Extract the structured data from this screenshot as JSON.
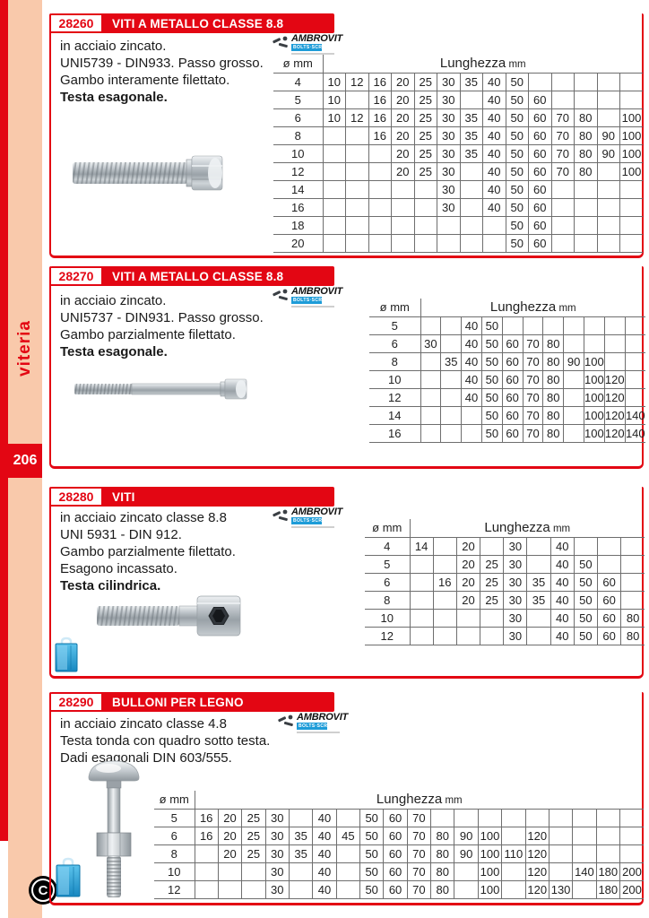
{
  "sidebar": {
    "vertical_label": "viteria",
    "page_number": "206",
    "footer_mark": "C"
  },
  "brand": {
    "name": "AMBROVIT",
    "sub": "BOLTS·SCREWS",
    "accent_blue": "#1e9cd8"
  },
  "colors": {
    "red": "#e30613",
    "pink": "#f9c9ab",
    "grid_line": "#6e6e6e"
  },
  "icons": {
    "screws": "screws-icon",
    "package": "package-bag-icon",
    "footer": "copyright-mark"
  },
  "table_labels": {
    "diameter": "ø mm",
    "length": "Lunghezza",
    "unit": "mm"
  },
  "sections": [
    {
      "code": "28260",
      "title": "VITI A METALLO CLASSE 8.8",
      "description": [
        {
          "text": "in acciaio zincato.",
          "bold": false
        },
        {
          "text": "UNI5739 - DIN933. Passo grosso.",
          "bold": false
        },
        {
          "text": "Gambo interamente filettato.",
          "bold": false
        },
        {
          "text": "Testa esagonale.",
          "bold": true
        }
      ],
      "image": "fully-threaded-hex-bolt",
      "rows": [
        {
          "diameter": "4",
          "lengths": [
            "10",
            "12",
            "16",
            "20",
            "25",
            "30",
            "35",
            "40",
            "50",
            "",
            "",
            "",
            "",
            ""
          ]
        },
        {
          "diameter": "5",
          "lengths": [
            "10",
            "",
            "16",
            "20",
            "25",
            "30",
            "",
            "40",
            "50",
            "60",
            "",
            "",
            "",
            ""
          ]
        },
        {
          "diameter": "6",
          "lengths": [
            "10",
            "12",
            "16",
            "20",
            "25",
            "30",
            "35",
            "40",
            "50",
            "60",
            "70",
            "80",
            "",
            "100"
          ]
        },
        {
          "diameter": "8",
          "lengths": [
            "",
            "",
            "16",
            "20",
            "25",
            "30",
            "35",
            "40",
            "50",
            "60",
            "70",
            "80",
            "90",
            "100"
          ]
        },
        {
          "diameter": "10",
          "lengths": [
            "",
            "",
            "",
            "20",
            "25",
            "30",
            "35",
            "40",
            "50",
            "60",
            "70",
            "80",
            "90",
            "100"
          ]
        },
        {
          "diameter": "12",
          "lengths": [
            "",
            "",
            "",
            "20",
            "25",
            "30",
            "",
            "40",
            "50",
            "60",
            "70",
            "80",
            "",
            "100"
          ]
        },
        {
          "diameter": "14",
          "lengths": [
            "",
            "",
            "",
            "",
            "",
            "30",
            "",
            "40",
            "50",
            "60",
            "",
            "",
            "",
            ""
          ]
        },
        {
          "diameter": "16",
          "lengths": [
            "",
            "",
            "",
            "",
            "",
            "30",
            "",
            "40",
            "50",
            "60",
            "",
            "",
            "",
            ""
          ]
        },
        {
          "diameter": "18",
          "lengths": [
            "",
            "",
            "",
            "",
            "",
            "",
            "",
            "",
            "50",
            "60",
            "",
            "",
            "",
            ""
          ]
        },
        {
          "diameter": "20",
          "lengths": [
            "",
            "",
            "",
            "",
            "",
            "",
            "",
            "",
            "50",
            "60",
            "",
            "",
            "",
            ""
          ]
        }
      ]
    },
    {
      "code": "28270",
      "title": "VITI A METALLO CLASSE 8.8",
      "description": [
        {
          "text": "in acciaio zincato.",
          "bold": false
        },
        {
          "text": "UNI5737 - DIN931. Passo grosso.",
          "bold": false
        },
        {
          "text": "Gambo parzialmente filettato.",
          "bold": false
        },
        {
          "text": "Testa esagonale.",
          "bold": true
        }
      ],
      "image": "partially-threaded-hex-bolt",
      "rows": [
        {
          "diameter": "5",
          "lengths": [
            "",
            "",
            "40",
            "50",
            "",
            "",
            "",
            "",
            "",
            "",
            ""
          ]
        },
        {
          "diameter": "6",
          "lengths": [
            "30",
            "",
            "40",
            "50",
            "60",
            "70",
            "80",
            "",
            "",
            "",
            ""
          ]
        },
        {
          "diameter": "8",
          "lengths": [
            "",
            "35",
            "40",
            "50",
            "60",
            "70",
            "80",
            "90",
            "100",
            "",
            ""
          ]
        },
        {
          "diameter": "10",
          "lengths": [
            "",
            "",
            "40",
            "50",
            "60",
            "70",
            "80",
            "",
            "100",
            "120",
            ""
          ]
        },
        {
          "diameter": "12",
          "lengths": [
            "",
            "",
            "40",
            "50",
            "60",
            "70",
            "80",
            "",
            "100",
            "120",
            ""
          ]
        },
        {
          "diameter": "14",
          "lengths": [
            "",
            "",
            "",
            "50",
            "60",
            "70",
            "80",
            "",
            "100",
            "120",
            "140"
          ]
        },
        {
          "diameter": "16",
          "lengths": [
            "",
            "",
            "",
            "50",
            "60",
            "70",
            "80",
            "",
            "100",
            "120",
            "140"
          ]
        }
      ]
    },
    {
      "code": "28280",
      "title": "VITI",
      "description": [
        {
          "text": "in acciaio zincato classe 8.8",
          "bold": false
        },
        {
          "text": "UNI 5931 - DIN 912.",
          "bold": false
        },
        {
          "text": "Gambo parzialmente filettato.",
          "bold": false
        },
        {
          "text": "Esagono incassato.",
          "bold": false
        },
        {
          "text": "Testa cilindrica.",
          "bold": true
        }
      ],
      "image": "socket-head-cap-screw",
      "rows": [
        {
          "diameter": "4",
          "lengths": [
            "14",
            "",
            "20",
            "",
            "30",
            "",
            "40",
            "",
            "",
            ""
          ]
        },
        {
          "diameter": "5",
          "lengths": [
            "",
            "",
            "20",
            "25",
            "30",
            "",
            "40",
            "50",
            "",
            ""
          ]
        },
        {
          "diameter": "6",
          "lengths": [
            "",
            "16",
            "20",
            "25",
            "30",
            "35",
            "40",
            "50",
            "60",
            ""
          ]
        },
        {
          "diameter": "8",
          "lengths": [
            "",
            "",
            "20",
            "25",
            "30",
            "35",
            "40",
            "50",
            "60",
            ""
          ]
        },
        {
          "diameter": "10",
          "lengths": [
            "",
            "",
            "",
            "",
            "30",
            "",
            "40",
            "50",
            "60",
            "80"
          ]
        },
        {
          "diameter": "12",
          "lengths": [
            "",
            "",
            "",
            "",
            "30",
            "",
            "40",
            "50",
            "60",
            "80"
          ]
        }
      ]
    },
    {
      "code": "28290",
      "title": "BULLONI PER LEGNO",
      "description": [
        {
          "text": "in acciaio zincato classe 4.8",
          "bold": false
        },
        {
          "text": "Testa tonda con quadro sotto testa.",
          "bold": false
        },
        {
          "text": "Dadi esagonali  DIN 603/555.",
          "bold": false
        }
      ],
      "image": "carriage-bolt-with-nut",
      "rows": [
        {
          "diameter": "5",
          "lengths": [
            "16",
            "20",
            "25",
            "30",
            "",
            "40",
            "",
            "50",
            "60",
            "70",
            "",
            "",
            "",
            "",
            "",
            "",
            "",
            "",
            ""
          ]
        },
        {
          "diameter": "6",
          "lengths": [
            "16",
            "20",
            "25",
            "30",
            "35",
            "40",
            "45",
            "50",
            "60",
            "70",
            "80",
            "90",
            "100",
            "",
            "120",
            "",
            "",
            "",
            ""
          ]
        },
        {
          "diameter": "8",
          "lengths": [
            "",
            "20",
            "25",
            "30",
            "35",
            "40",
            "",
            "50",
            "60",
            "70",
            "80",
            "90",
            "100",
            "110",
            "120",
            "",
            "",
            "",
            ""
          ]
        },
        {
          "diameter": "10",
          "lengths": [
            "",
            "",
            "",
            "30",
            "",
            "40",
            "",
            "50",
            "60",
            "70",
            "80",
            "",
            "100",
            "",
            "120",
            "",
            "140",
            "180",
            "200"
          ]
        },
        {
          "diameter": "12",
          "lengths": [
            "",
            "",
            "",
            "30",
            "",
            "40",
            "",
            "50",
            "60",
            "70",
            "80",
            "",
            "100",
            "",
            "120",
            "130",
            "",
            "180",
            "200"
          ]
        }
      ]
    }
  ]
}
